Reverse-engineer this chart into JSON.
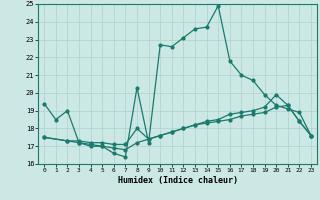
{
  "xlabel": "Humidex (Indice chaleur)",
  "background_color": "#cce8e4",
  "grid_color": "#afd0cc",
  "line_color": "#1a7a6e",
  "xlim": [
    -0.5,
    23.5
  ],
  "ylim": [
    16,
    25
  ],
  "xticks": [
    0,
    1,
    2,
    3,
    4,
    5,
    6,
    7,
    8,
    9,
    10,
    11,
    12,
    13,
    14,
    15,
    16,
    17,
    18,
    19,
    20,
    21,
    22,
    23
  ],
  "yticks": [
    16,
    17,
    18,
    19,
    20,
    21,
    22,
    23,
    24,
    25
  ],
  "line1_x": [
    0,
    1,
    2,
    3,
    4,
    5,
    6,
    7,
    8,
    9,
    10,
    11,
    12,
    13,
    14,
    15,
    16,
    17,
    18,
    19,
    20,
    21,
    22,
    23
  ],
  "line1_y": [
    19.4,
    18.5,
    19.0,
    17.2,
    17.0,
    17.0,
    16.6,
    16.4,
    20.3,
    17.2,
    22.7,
    22.6,
    23.1,
    23.6,
    23.7,
    24.9,
    21.8,
    21.0,
    20.7,
    19.9,
    19.3,
    19.1,
    18.9,
    17.6
  ],
  "line2_x": [
    0,
    2,
    3,
    4,
    5,
    6,
    7,
    8,
    9,
    10,
    11,
    12,
    13,
    14,
    15,
    16,
    17,
    18,
    19,
    20,
    21,
    22,
    23
  ],
  "line2_y": [
    17.5,
    17.3,
    17.3,
    17.2,
    17.2,
    17.1,
    17.1,
    18.0,
    17.4,
    17.6,
    17.8,
    18.0,
    18.2,
    18.4,
    18.5,
    18.8,
    18.9,
    19.0,
    19.2,
    19.9,
    19.3,
    18.4,
    17.6
  ],
  "line3_x": [
    0,
    2,
    3,
    4,
    5,
    6,
    7,
    8,
    9,
    10,
    11,
    12,
    13,
    14,
    15,
    16,
    17,
    18,
    19,
    20,
    21,
    22,
    23
  ],
  "line3_y": [
    17.5,
    17.3,
    17.2,
    17.1,
    17.0,
    16.9,
    16.8,
    17.2,
    17.4,
    17.6,
    17.8,
    18.0,
    18.2,
    18.3,
    18.4,
    18.5,
    18.7,
    18.8,
    18.9,
    19.2,
    19.3,
    18.4,
    17.6
  ]
}
